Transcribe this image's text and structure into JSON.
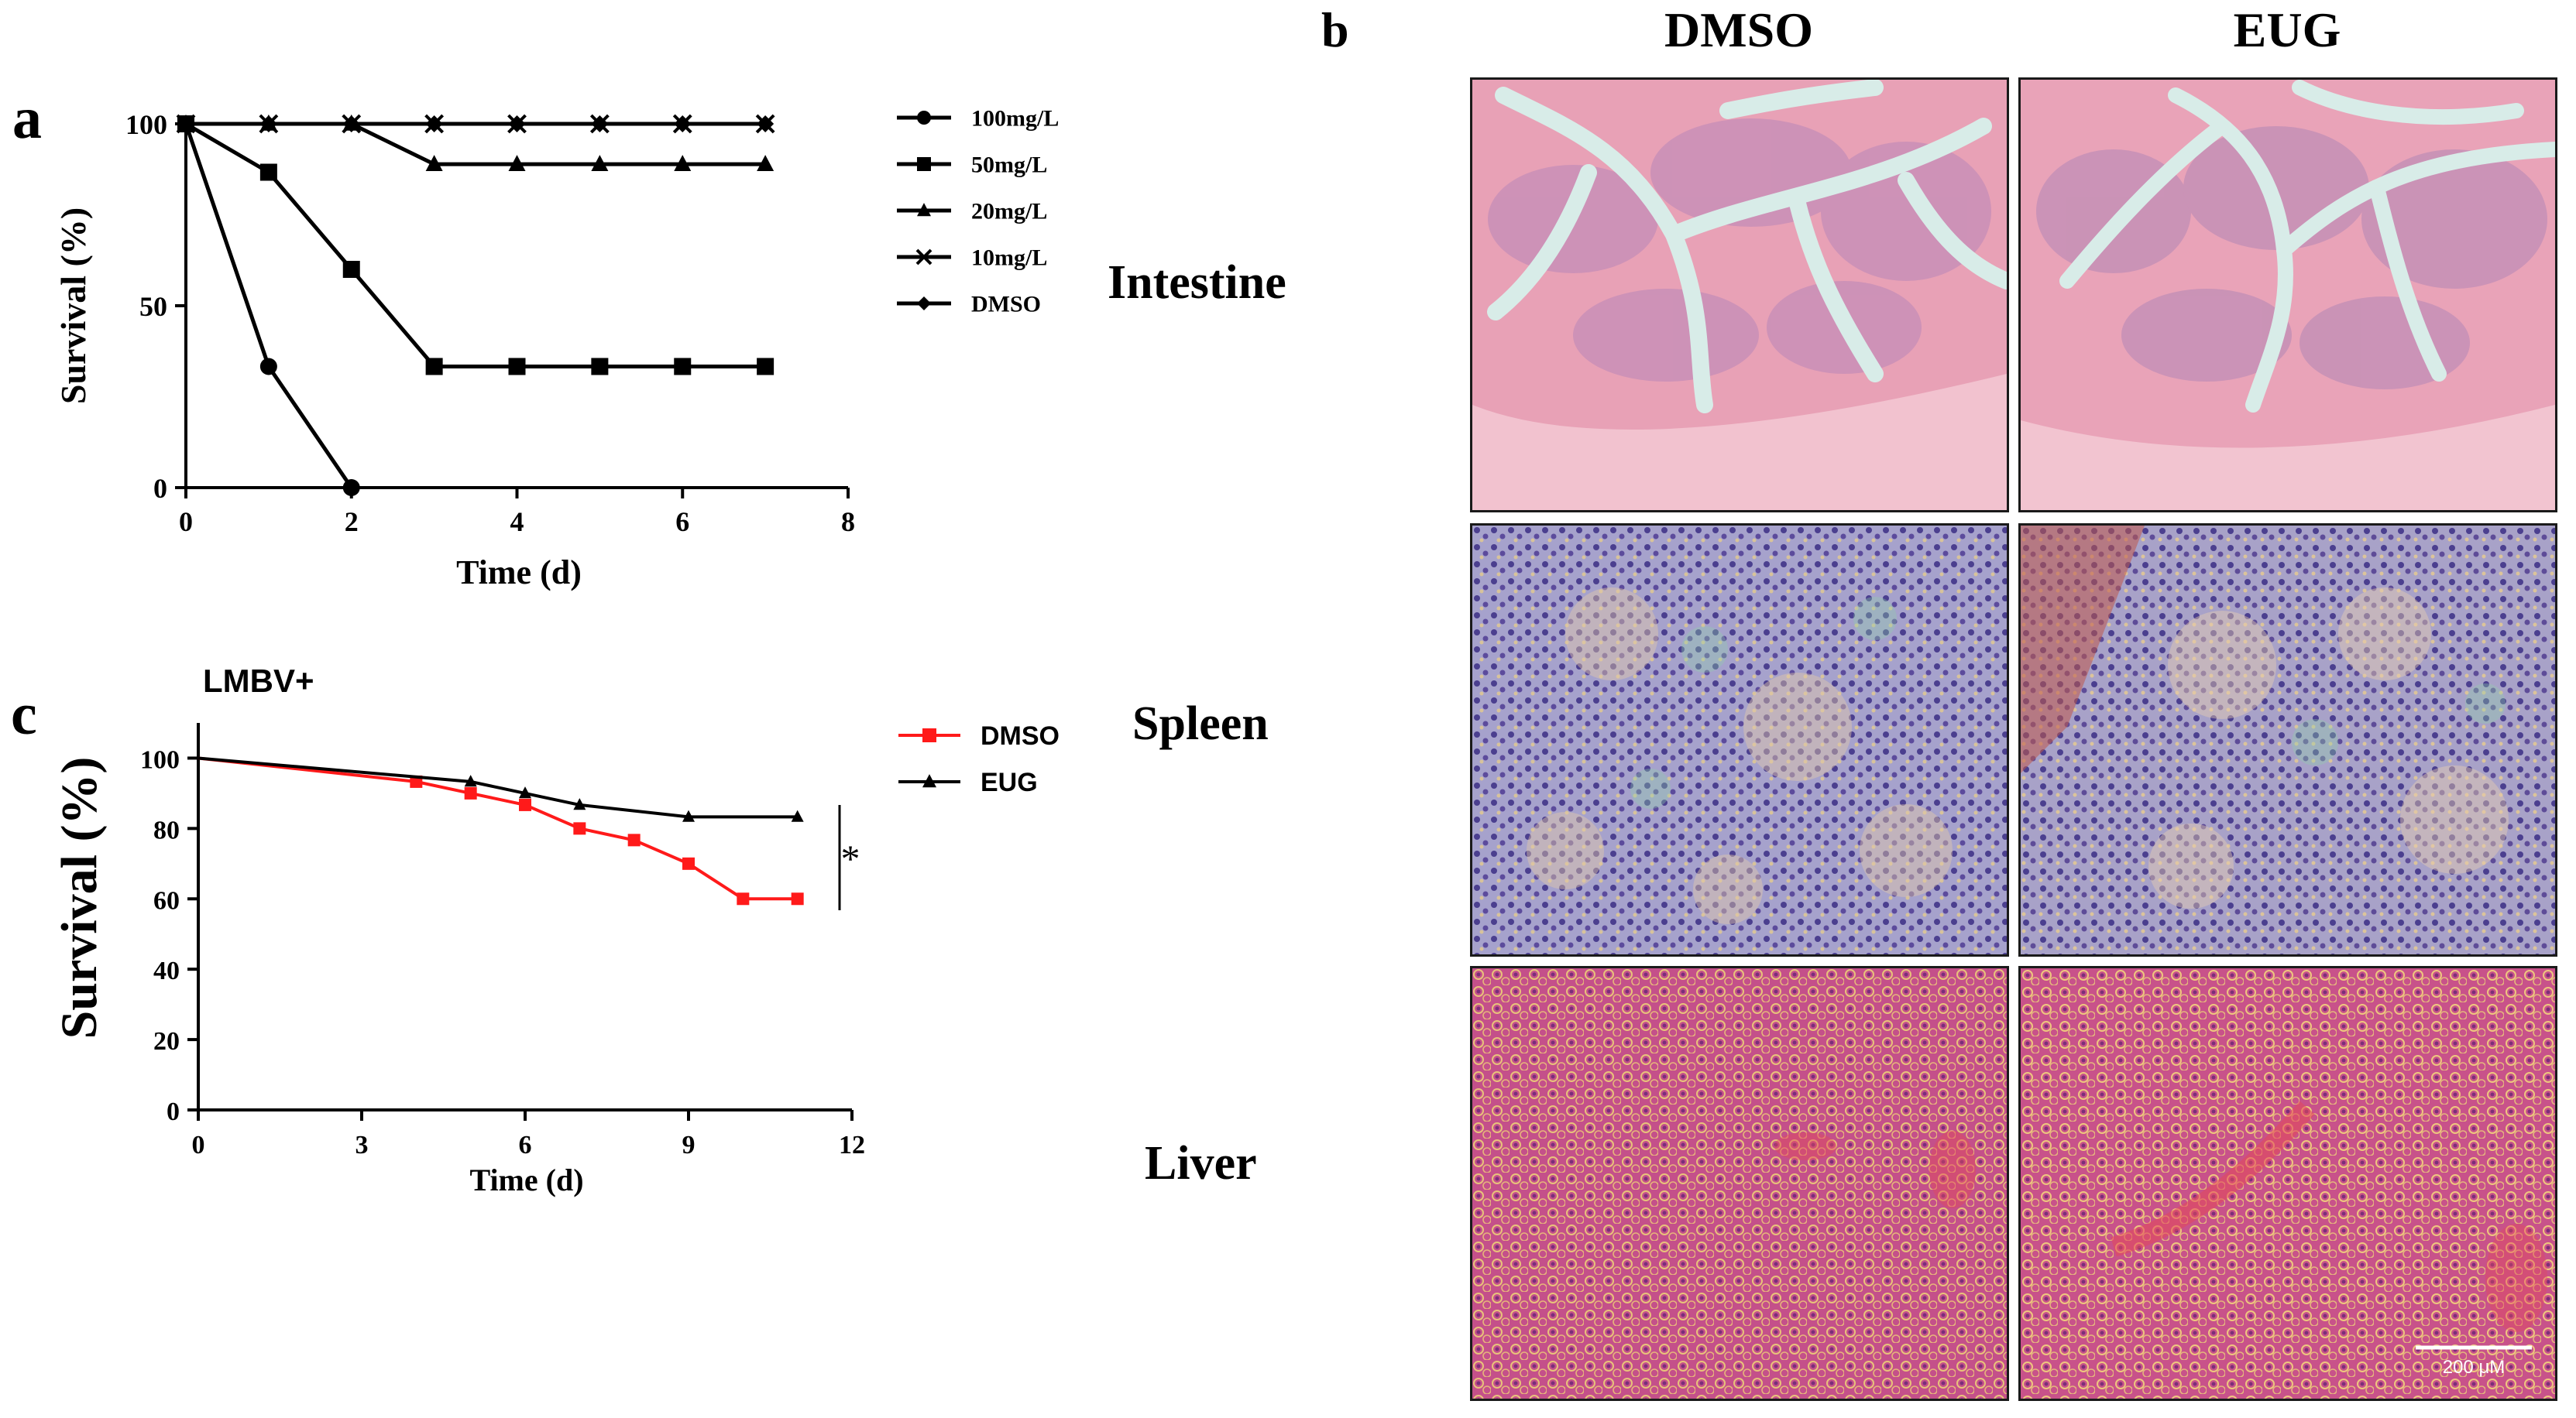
{
  "panels": {
    "a": {
      "letter": "a"
    },
    "b": {
      "letter": "b",
      "columns": [
        "DMSO",
        "EUG"
      ],
      "rows": [
        "Intestine",
        "Spleen",
        "Liver"
      ],
      "scale_bar": "200 μM"
    },
    "c": {
      "letter": "c",
      "star": "*"
    }
  },
  "colors": {
    "dmso_c": "#ff1a1a",
    "eug_c": "#000000",
    "he_pink": "#e07a9a",
    "he_purple": "#6a4a9a"
  },
  "chart_data": [
    {
      "id": "a",
      "type": "line",
      "title": "",
      "xlabel": "Time (d)",
      "ylabel": "Survival (%)",
      "xlim": [
        0,
        8
      ],
      "ylim": [
        0,
        100
      ],
      "xticks": [
        0,
        2,
        4,
        6,
        8
      ],
      "yticks": [
        0,
        50,
        100
      ],
      "legend_position": "right",
      "series": [
        {
          "name": "100mg/L",
          "marker": "circle",
          "x": [
            0,
            1,
            2
          ],
          "y": [
            100,
            33.3,
            0
          ]
        },
        {
          "name": "50mg/L",
          "marker": "square",
          "x": [
            0,
            1,
            2,
            3,
            4,
            5,
            6,
            7
          ],
          "y": [
            100,
            86.7,
            60,
            33.3,
            33.3,
            33.3,
            33.3,
            33.3
          ]
        },
        {
          "name": "20mg/L",
          "marker": "triangle",
          "x": [
            0,
            1,
            2,
            3,
            4,
            5,
            6,
            7
          ],
          "y": [
            100,
            100,
            100,
            88.9,
            88.9,
            88.9,
            88.9,
            88.9
          ]
        },
        {
          "name": "10mg/L",
          "marker": "x",
          "x": [
            0,
            1,
            2,
            3,
            4,
            5,
            6,
            7
          ],
          "y": [
            100,
            100,
            100,
            100,
            100,
            100,
            100,
            100
          ]
        },
        {
          "name": "DMSO",
          "marker": "diamond",
          "x": [
            0,
            1,
            2,
            3,
            4,
            5,
            6,
            7
          ],
          "y": [
            100,
            100,
            100,
            100,
            100,
            100,
            100,
            100
          ]
        }
      ]
    },
    {
      "id": "c",
      "type": "line",
      "title": "LMBV+",
      "xlabel": "Time (d)",
      "ylabel": "Survival (%)",
      "xlim": [
        0,
        12
      ],
      "ylim": [
        0,
        110
      ],
      "xticks": [
        0,
        3,
        6,
        9,
        12
      ],
      "yticks": [
        0,
        20,
        40,
        60,
        80,
        100
      ],
      "legend_position": "right",
      "series": [
        {
          "name": "DMSO",
          "color": "#ff1a1a",
          "marker": "square",
          "x": [
            0,
            4,
            5,
            6,
            7,
            8,
            9,
            10,
            11
          ],
          "y": [
            100,
            93.3,
            90,
            86.7,
            80,
            76.7,
            70,
            60,
            60
          ]
        },
        {
          "name": "EUG",
          "color": "#000000",
          "marker": "triangle",
          "x": [
            0,
            5,
            6,
            7,
            9,
            11
          ],
          "y": [
            100,
            93.3,
            90,
            86.7,
            83.3,
            83.3
          ]
        }
      ]
    }
  ]
}
